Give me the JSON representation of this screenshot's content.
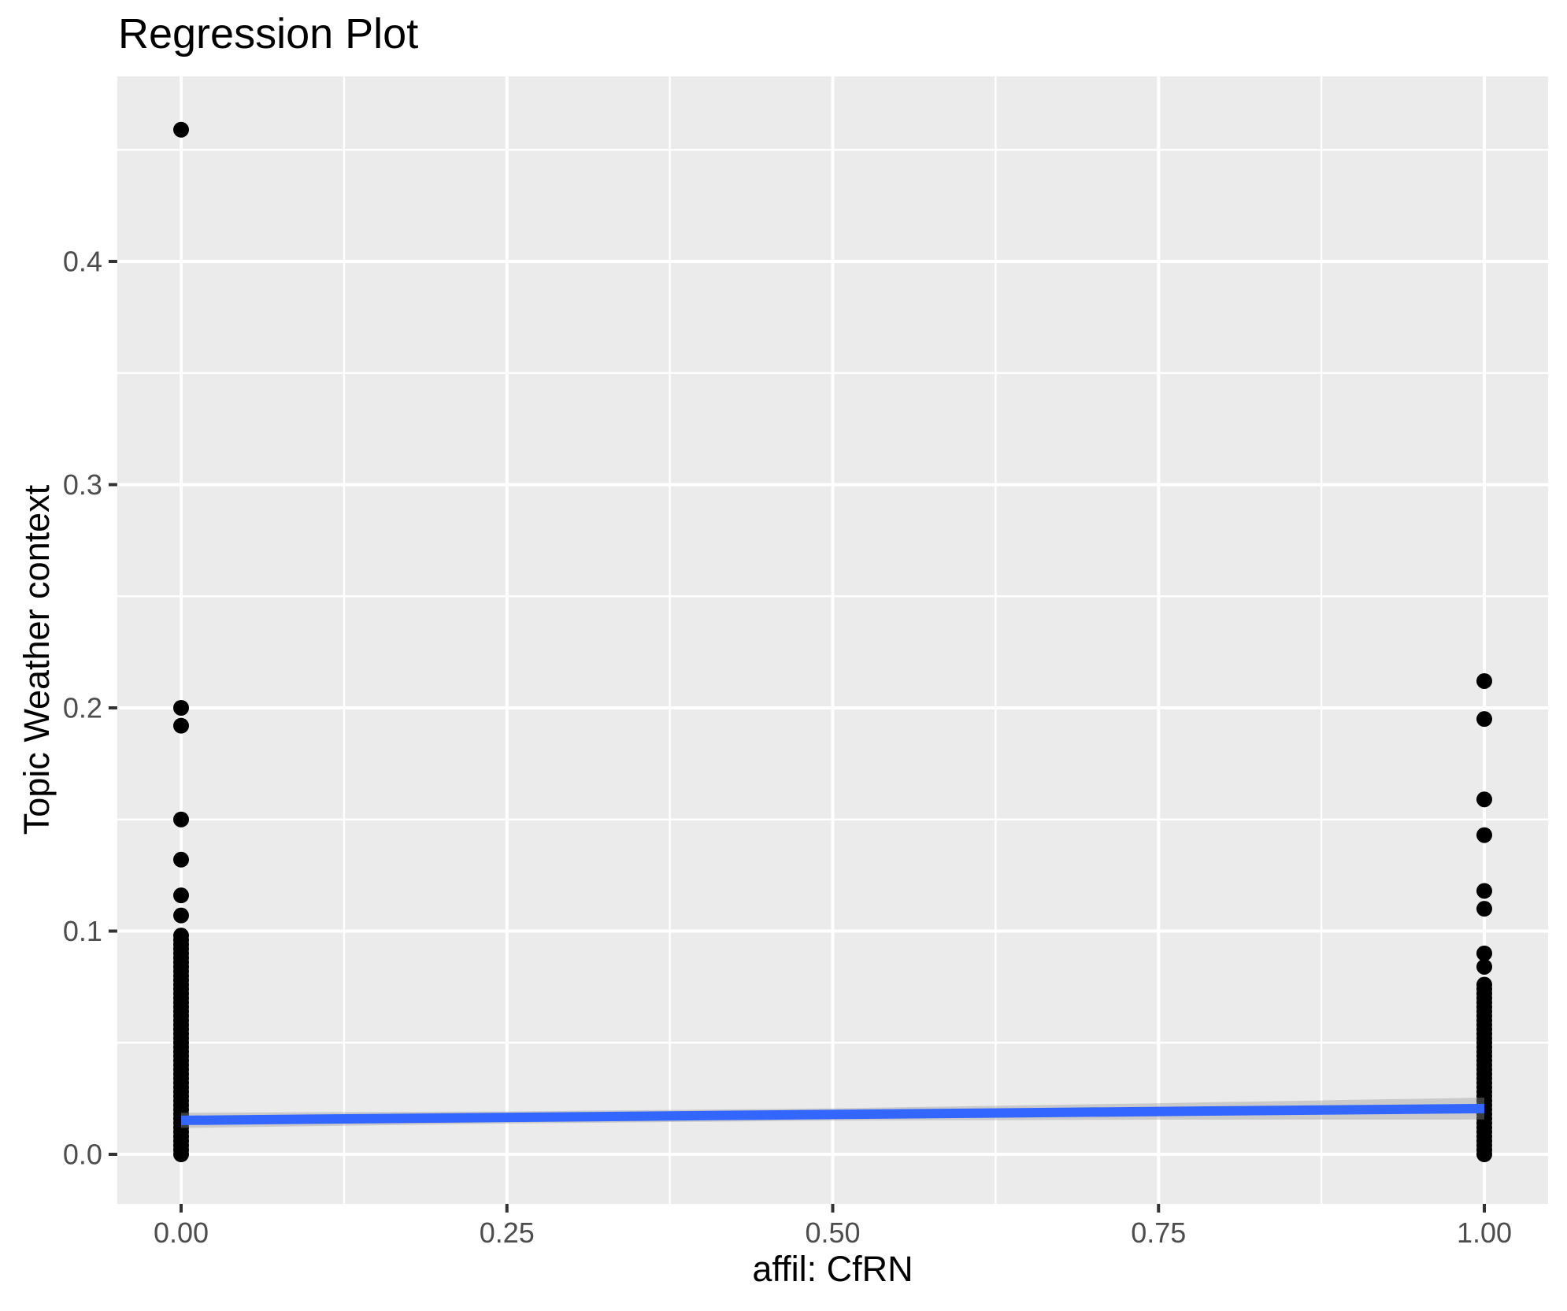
{
  "chart_data": {
    "type": "scatter",
    "title": "Regression Plot",
    "xlabel": "affil: CfRN",
    "ylabel": "Topic Weather context",
    "x_ticks": {
      "values": [
        0,
        0.25,
        0.5,
        0.75,
        1
      ],
      "labels": [
        "0.00",
        "0.25",
        "0.50",
        "0.75",
        "1.00"
      ]
    },
    "y_ticks": {
      "values": [
        0,
        0.1,
        0.2,
        0.3,
        0.4
      ],
      "labels": [
        "0.0",
        "0.1",
        "0.2",
        "0.3",
        "0.4"
      ]
    },
    "xlim": [
      -0.049,
      1.049
    ],
    "ylim": [
      -0.0222,
      0.4829
    ],
    "grid": true,
    "legend": false,
    "points": {
      "color": "#000000",
      "discrete": [
        {
          "x": 0,
          "y": [
            0.459,
            0.2,
            0.192,
            0.15,
            0.132,
            0.116,
            0.107
          ]
        },
        {
          "x": 1,
          "y": [
            0.212,
            0.195,
            0.159,
            0.143,
            0.118,
            0.11,
            0.09,
            0.084
          ]
        }
      ],
      "dense_columns": [
        {
          "x": 0,
          "from": 0.0,
          "to": 0.098,
          "step": 0.002
        },
        {
          "x": 1,
          "from": 0.0,
          "to": 0.076,
          "step": 0.002
        }
      ]
    },
    "regression": {
      "color": "#3366FF",
      "x": [
        0,
        1
      ],
      "y": [
        0.0152,
        0.0205
      ]
    },
    "confidence_band": {
      "fill": "#999999",
      "opacity": 0.4,
      "x": [
        0,
        0.25,
        0.5,
        0.75,
        1
      ],
      "upper": [
        0.0186,
        0.0192,
        0.0206,
        0.0229,
        0.0254
      ],
      "lower": [
        0.0118,
        0.0138,
        0.0151,
        0.0155,
        0.0156
      ]
    }
  },
  "style": {
    "panel_bg": "#EBEBEB",
    "grid_color": "#FFFFFF",
    "tick_label_color": "#4D4D4D",
    "tick_color": "#333333",
    "text_color": "#000000"
  }
}
